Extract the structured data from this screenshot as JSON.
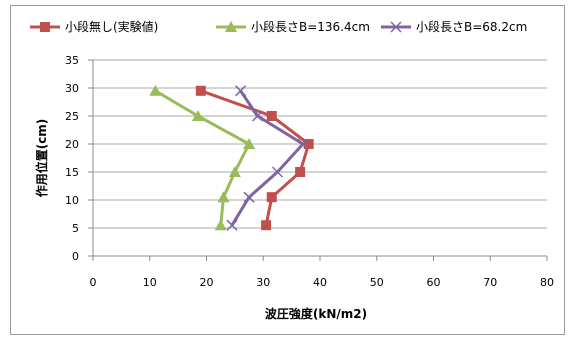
{
  "chart_data": {
    "type": "line",
    "title": "",
    "xlabel": "波圧強度(kN/m2)",
    "ylabel": "作用位置(cm)",
    "xlim": [
      0,
      80
    ],
    "ylim": [
      0,
      35
    ],
    "x_ticks": [
      "0",
      "10",
      "20",
      "30",
      "40",
      "50",
      "60",
      "70",
      "80"
    ],
    "y_ticks": [
      "0",
      "5",
      "10",
      "15",
      "20",
      "25",
      "30",
      "35"
    ],
    "grid": true,
    "legend_position": "top",
    "series": [
      {
        "name": "小段無し(実験値)",
        "color": "#c0504d",
        "marker": "square",
        "points": [
          [
            30.5,
            5.5
          ],
          [
            31.5,
            10.5
          ],
          [
            36.5,
            15
          ],
          [
            38,
            20
          ],
          [
            31.5,
            25
          ],
          [
            19,
            29.5
          ]
        ]
      },
      {
        "name": "小段長さB=136.4cm",
        "color": "#9bbb59",
        "marker": "triangle",
        "points": [
          [
            22.5,
            5.5
          ],
          [
            23,
            10.5
          ],
          [
            25,
            15
          ],
          [
            27.5,
            20
          ],
          [
            18.5,
            25
          ],
          [
            11,
            29.5
          ]
        ]
      },
      {
        "name": "小段長さB=68.2cm",
        "color": "#8064a2",
        "marker": "x",
        "points": [
          [
            24.5,
            5.5
          ],
          [
            27.5,
            10.5
          ],
          [
            32.5,
            15
          ],
          [
            37,
            20
          ],
          [
            29,
            25
          ],
          [
            26,
            29.5
          ]
        ]
      }
    ]
  }
}
